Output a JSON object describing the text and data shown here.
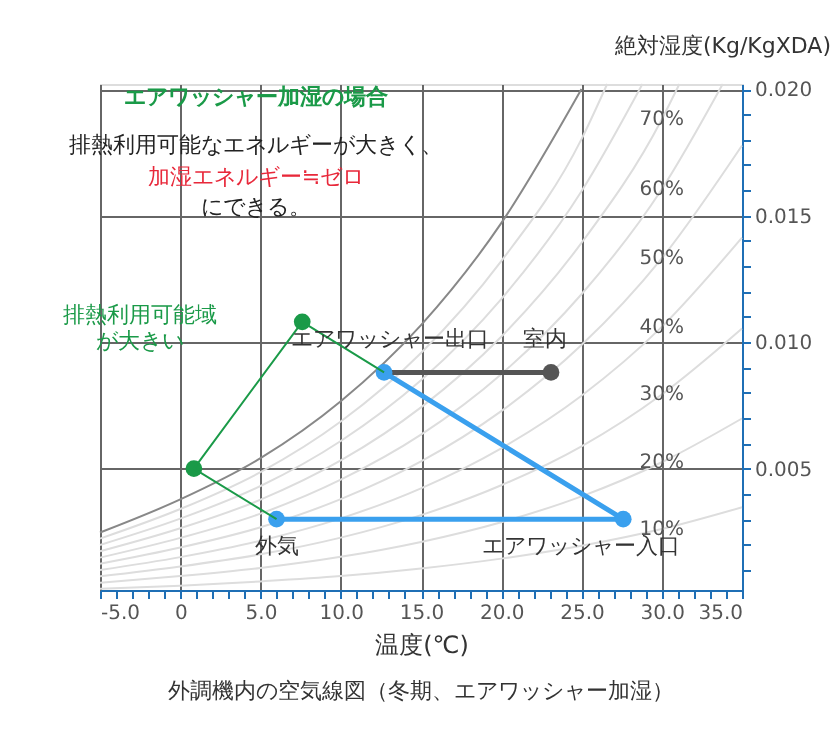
{
  "chart_data": {
    "type": "line",
    "title": "外調機内の空気線図（冬期、エアワッシャー加湿）",
    "xlabel": "温度(℃)",
    "ylabel": "絶対湿度(Kg/KgXDA)",
    "xlim": [
      -5,
      35
    ],
    "ylim": [
      0.0002,
      0.0202
    ],
    "xticks": [
      {
        "value": -5,
        "label": "-5.0"
      },
      {
        "value": -4,
        "label": null
      },
      {
        "value": -3,
        "label": null
      },
      {
        "value": -2,
        "label": null
      },
      {
        "value": -1,
        "label": null
      },
      {
        "value": 0,
        "label": "0"
      },
      {
        "value": 1,
        "label": null
      },
      {
        "value": 2,
        "label": null
      },
      {
        "value": 3,
        "label": null
      },
      {
        "value": 4,
        "label": null
      },
      {
        "value": 5,
        "label": "5.0"
      },
      {
        "value": 6,
        "label": null
      },
      {
        "value": 7,
        "label": null
      },
      {
        "value": 8,
        "label": null
      },
      {
        "value": 9,
        "label": null
      },
      {
        "value": 10,
        "label": "10.0"
      },
      {
        "value": 11,
        "label": null
      },
      {
        "value": 12,
        "label": null
      },
      {
        "value": 13,
        "label": null
      },
      {
        "value": 14,
        "label": null
      },
      {
        "value": 15,
        "label": "15.0"
      },
      {
        "value": 16,
        "label": null
      },
      {
        "value": 17,
        "label": null
      },
      {
        "value": 18,
        "label": null
      },
      {
        "value": 19,
        "label": null
      },
      {
        "value": 20,
        "label": "20.0"
      },
      {
        "value": 21,
        "label": null
      },
      {
        "value": 22,
        "label": null
      },
      {
        "value": 23,
        "label": null
      },
      {
        "value": 24,
        "label": null
      },
      {
        "value": 25,
        "label": "25.0"
      },
      {
        "value": 26,
        "label": null
      },
      {
        "value": 27,
        "label": null
      },
      {
        "value": 28,
        "label": null
      },
      {
        "value": 29,
        "label": null
      },
      {
        "value": 30,
        "label": "30.0"
      },
      {
        "value": 31,
        "label": null
      },
      {
        "value": 32,
        "label": null
      },
      {
        "value": 33,
        "label": null
      },
      {
        "value": 34,
        "label": null
      },
      {
        "value": 35,
        "label": "35.0"
      }
    ],
    "yticks": [
      {
        "value": 0.001,
        "label": null
      },
      {
        "value": 0.002,
        "label": null
      },
      {
        "value": 0.003,
        "label": null
      },
      {
        "value": 0.004,
        "label": null
      },
      {
        "value": 0.005,
        "label": "0.005"
      },
      {
        "value": 0.006,
        "label": null
      },
      {
        "value": 0.007,
        "label": null
      },
      {
        "value": 0.008,
        "label": null
      },
      {
        "value": 0.009,
        "label": null
      },
      {
        "value": 0.01,
        "label": "0.010"
      },
      {
        "value": 0.011,
        "label": null
      },
      {
        "value": 0.012,
        "label": null
      },
      {
        "value": 0.013,
        "label": null
      },
      {
        "value": 0.014,
        "label": null
      },
      {
        "value": 0.015,
        "label": "0.015"
      },
      {
        "value": 0.016,
        "label": null
      },
      {
        "value": 0.017,
        "label": null
      },
      {
        "value": 0.018,
        "label": null
      },
      {
        "value": 0.019,
        "label": null
      },
      {
        "value": 0.02,
        "label": "0.020"
      }
    ],
    "grid": true,
    "series": [
      {
        "color": "#dddddd",
        "x": [
          -5,
          0,
          5,
          10,
          15,
          20,
          25,
          30,
          35
        ],
        "values": [
          0.00025,
          0.00037,
          0.00054,
          0.00075,
          0.00105,
          0.00144,
          0.00195,
          0.00261,
          0.00347
        ]
      },
      {
        "type": "line",
        "color": "#dddddd",
        "x": [
          -5,
          0,
          5,
          10,
          15,
          20,
          25,
          30,
          35
        ],
        "values": [
          0.00049,
          0.00075,
          0.00107,
          0.00151,
          0.0021,
          0.00288,
          0.0039,
          0.00525,
          0.00698
        ]
      },
      {
        "type": "line",
        "color": "#dddddd",
        "x": [
          -5,
          0,
          5,
          10,
          15,
          20,
          25,
          30,
          35
        ],
        "values": [
          0.00074,
          0.00113,
          0.00161,
          0.00227,
          0.00316,
          0.00434,
          0.00588,
          0.00793,
          0.01054
        ]
      },
      {
        "type": "line",
        "color": "#dddddd",
        "x": [
          -5,
          0,
          5,
          10,
          15,
          20,
          25,
          30,
          35
        ],
        "values": [
          0.00099,
          0.0015,
          0.00215,
          0.00303,
          0.00422,
          0.0058,
          0.00788,
          0.0106,
          0.01413
        ]
      },
      {
        "type": "line",
        "color": "#dddddd",
        "x": [
          -5,
          0,
          5,
          10,
          15,
          20,
          25,
          30,
          35
        ],
        "values": [
          0.00124,
          0.00188,
          0.00268,
          0.00379,
          0.00528,
          0.00727,
          0.00988,
          0.01331,
          0.01777
        ]
      },
      {
        "type": "line",
        "color": "#dddddd",
        "x": [
          -5,
          0,
          5,
          10,
          15,
          20,
          25,
          30,
          33.8
        ],
        "values": [
          0.00148,
          0.00226,
          0.00322,
          0.00456,
          0.00634,
          0.00873,
          0.01189,
          0.01604,
          0.0202
        ]
      },
      {
        "type": "line",
        "color": "#dddddd",
        "x": [
          -5,
          0,
          5,
          10,
          15,
          20,
          25,
          30,
          31.1
        ],
        "values": [
          0.00173,
          0.00264,
          0.00377,
          0.00532,
          0.00742,
          0.01021,
          0.01392,
          0.0188,
          0.0202
        ]
      },
      {
        "type": "line",
        "color": "#dddddd",
        "x": [
          -5,
          0,
          5,
          10,
          15,
          20,
          25,
          28.8
        ],
        "values": [
          0.00198,
          0.00302,
          0.00431,
          0.00609,
          0.00849,
          0.0117,
          0.01596,
          0.0202
        ]
      },
      {
        "type": "line",
        "color": "#dddddd",
        "x": [
          -5,
          0,
          5,
          10,
          15,
          20,
          25,
          26.6
        ],
        "values": [
          0.00223,
          0.0034,
          0.00486,
          0.00686,
          0.00957,
          0.0132,
          0.01802,
          0.0202
        ]
      },
      {
        "color": "#888888",
        "x": [
          -5,
          0,
          5,
          10,
          15,
          20,
          25
        ],
        "values": [
          0.00247,
          0.00378,
          0.00541,
          0.00766,
          0.01067,
          0.0147,
          0.02
        ]
      },
      {
        "type": "scatter",
        "color": "#1a9a48",
        "marker": "circle",
        "x": [
          0.85,
          7.6
        ],
        "values": [
          0.005,
          0.0108
        ]
      },
      {
        "type": "line",
        "color": "#555555",
        "x": [
          12.7,
          23.1
        ],
        "values": [
          0.0088,
          0.0088
        ]
      },
      {
        "type": "scatter",
        "color": "#555555",
        "marker": "circle",
        "x": [
          23.1
        ],
        "values": [
          0.0088
        ]
      },
      {
        "color": "#3aa0ee",
        "marker": "circle",
        "x": [
          6,
          27.6,
          12.7
        ],
        "values": [
          0.003,
          0.003,
          0.0088
        ]
      },
      {
        "type": "line",
        "color": "#1a9a48",
        "x": [
          6,
          0.85,
          7.6,
          12.7
        ],
        "values": [
          0.003,
          0.005,
          0.0108,
          0.0088
        ]
      }
    ],
    "annotations": [
      "エアワッシャー加湿の場合",
      "排熱利用可能なエネルギーが大きく、",
      "加湿エネルギー≒ゼロ",
      "にできる。",
      "排熱利用可能域",
      "が大きい",
      {
        "text": "10%",
        "x": 30,
        "y": 0.00261
      },
      {
        "text": "20%",
        "x": 30,
        "y": 0.00525
      },
      {
        "text": "30%",
        "x": 30,
        "y": 0.00793
      },
      {
        "text": "40%",
        "x": 30,
        "y": 0.0106
      },
      {
        "text": "50%",
        "x": 30,
        "y": 0.01331
      },
      {
        "text": "60%",
        "x": 30,
        "y": 0.01604
      },
      {
        "text": "70%",
        "x": 30,
        "y": 0.0188
      },
      {
        "text": "外気",
        "x": 6,
        "y": 0.003
      },
      {
        "text": "エアワッシャー入口",
        "x": 27.6,
        "y": 0.003
      },
      {
        "text": "エアワッシャー出口",
        "x": 12.7,
        "y": 0.0088
      },
      {
        "text": "室内",
        "x": 23.1,
        "y": 0.0088
      }
    ]
  }
}
